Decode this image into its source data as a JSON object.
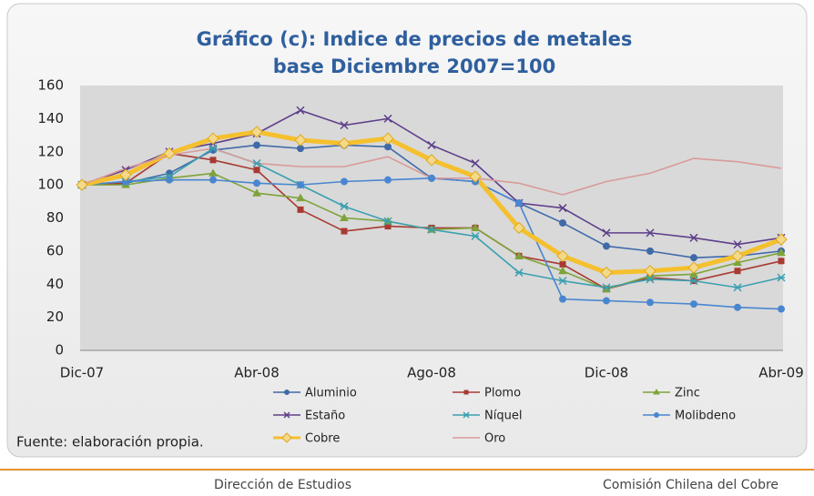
{
  "chart_data": {
    "type": "line",
    "title": "Gráfico (c): Indice de precios de metales",
    "subtitle": "base Diciembre 2007=100",
    "categories": [
      "Dic-07",
      null,
      null,
      null,
      "Abr-08",
      null,
      null,
      null,
      "Ago-08",
      null,
      null,
      null,
      "Dic-08",
      null,
      null,
      null,
      "Abr-09"
    ],
    "ylim": [
      0,
      160
    ],
    "yticks": [
      0,
      20,
      40,
      60,
      80,
      100,
      120,
      140,
      160
    ],
    "grid": false,
    "series": [
      {
        "name": "Aluminio",
        "color": "#3f6aa8",
        "marker": "circle",
        "values": [
          100,
          101,
          107,
          121,
          124,
          122,
          124,
          123,
          104,
          102,
          89,
          77,
          63,
          60,
          56,
          57,
          60
        ]
      },
      {
        "name": "Plomo",
        "color": "#a83a32",
        "marker": "square",
        "values": [
          100,
          101,
          119,
          115,
          109,
          85,
          72,
          75,
          74,
          74,
          57,
          52,
          37,
          44,
          42,
          48,
          54
        ]
      },
      {
        "name": "Zinc",
        "color": "#7fa33a",
        "marker": "triangle",
        "values": [
          100,
          100,
          104,
          107,
          95,
          92,
          80,
          78,
          73,
          74,
          57,
          48,
          37,
          45,
          46,
          53,
          59
        ]
      },
      {
        "name": "Estaño",
        "color": "#5e3f8a",
        "marker": "x",
        "values": [
          100,
          109,
          120,
          125,
          131,
          145,
          136,
          140,
          124,
          113,
          89,
          86,
          71,
          71,
          68,
          64,
          68
        ]
      },
      {
        "name": "Níquel",
        "color": "#3aa0b0",
        "marker": "star",
        "values": [
          100,
          102,
          105,
          122,
          113,
          100,
          87,
          78,
          73,
          69,
          47,
          42,
          38,
          43,
          42,
          38,
          44
        ]
      },
      {
        "name": "Molibdeno",
        "color": "#4a86d0",
        "marker": "circle",
        "values": [
          100,
          102,
          103,
          103,
          101,
          100,
          102,
          103,
          104,
          102,
          89,
          31,
          30,
          29,
          28,
          26,
          25
        ]
      },
      {
        "name": "Cobre",
        "color": "#f5c02e",
        "marker": "diamond",
        "width": 5,
        "values": [
          100,
          106,
          119,
          128,
          132,
          127,
          125,
          128,
          115,
          105,
          74,
          57,
          47,
          48,
          50,
          57,
          67
        ]
      },
      {
        "name": "Oro",
        "color": "#d99a9a",
        "marker": "none",
        "values": [
          100,
          110,
          118,
          122,
          113,
          111,
          111,
          117,
          104,
          104,
          101,
          94,
          102,
          107,
          116,
          114,
          110
        ]
      }
    ],
    "source": "Fuente:  elaboración propia."
  },
  "footer": {
    "left": "Dirección de Estudios",
    "right": "Comisión Chilena del Cobre"
  }
}
